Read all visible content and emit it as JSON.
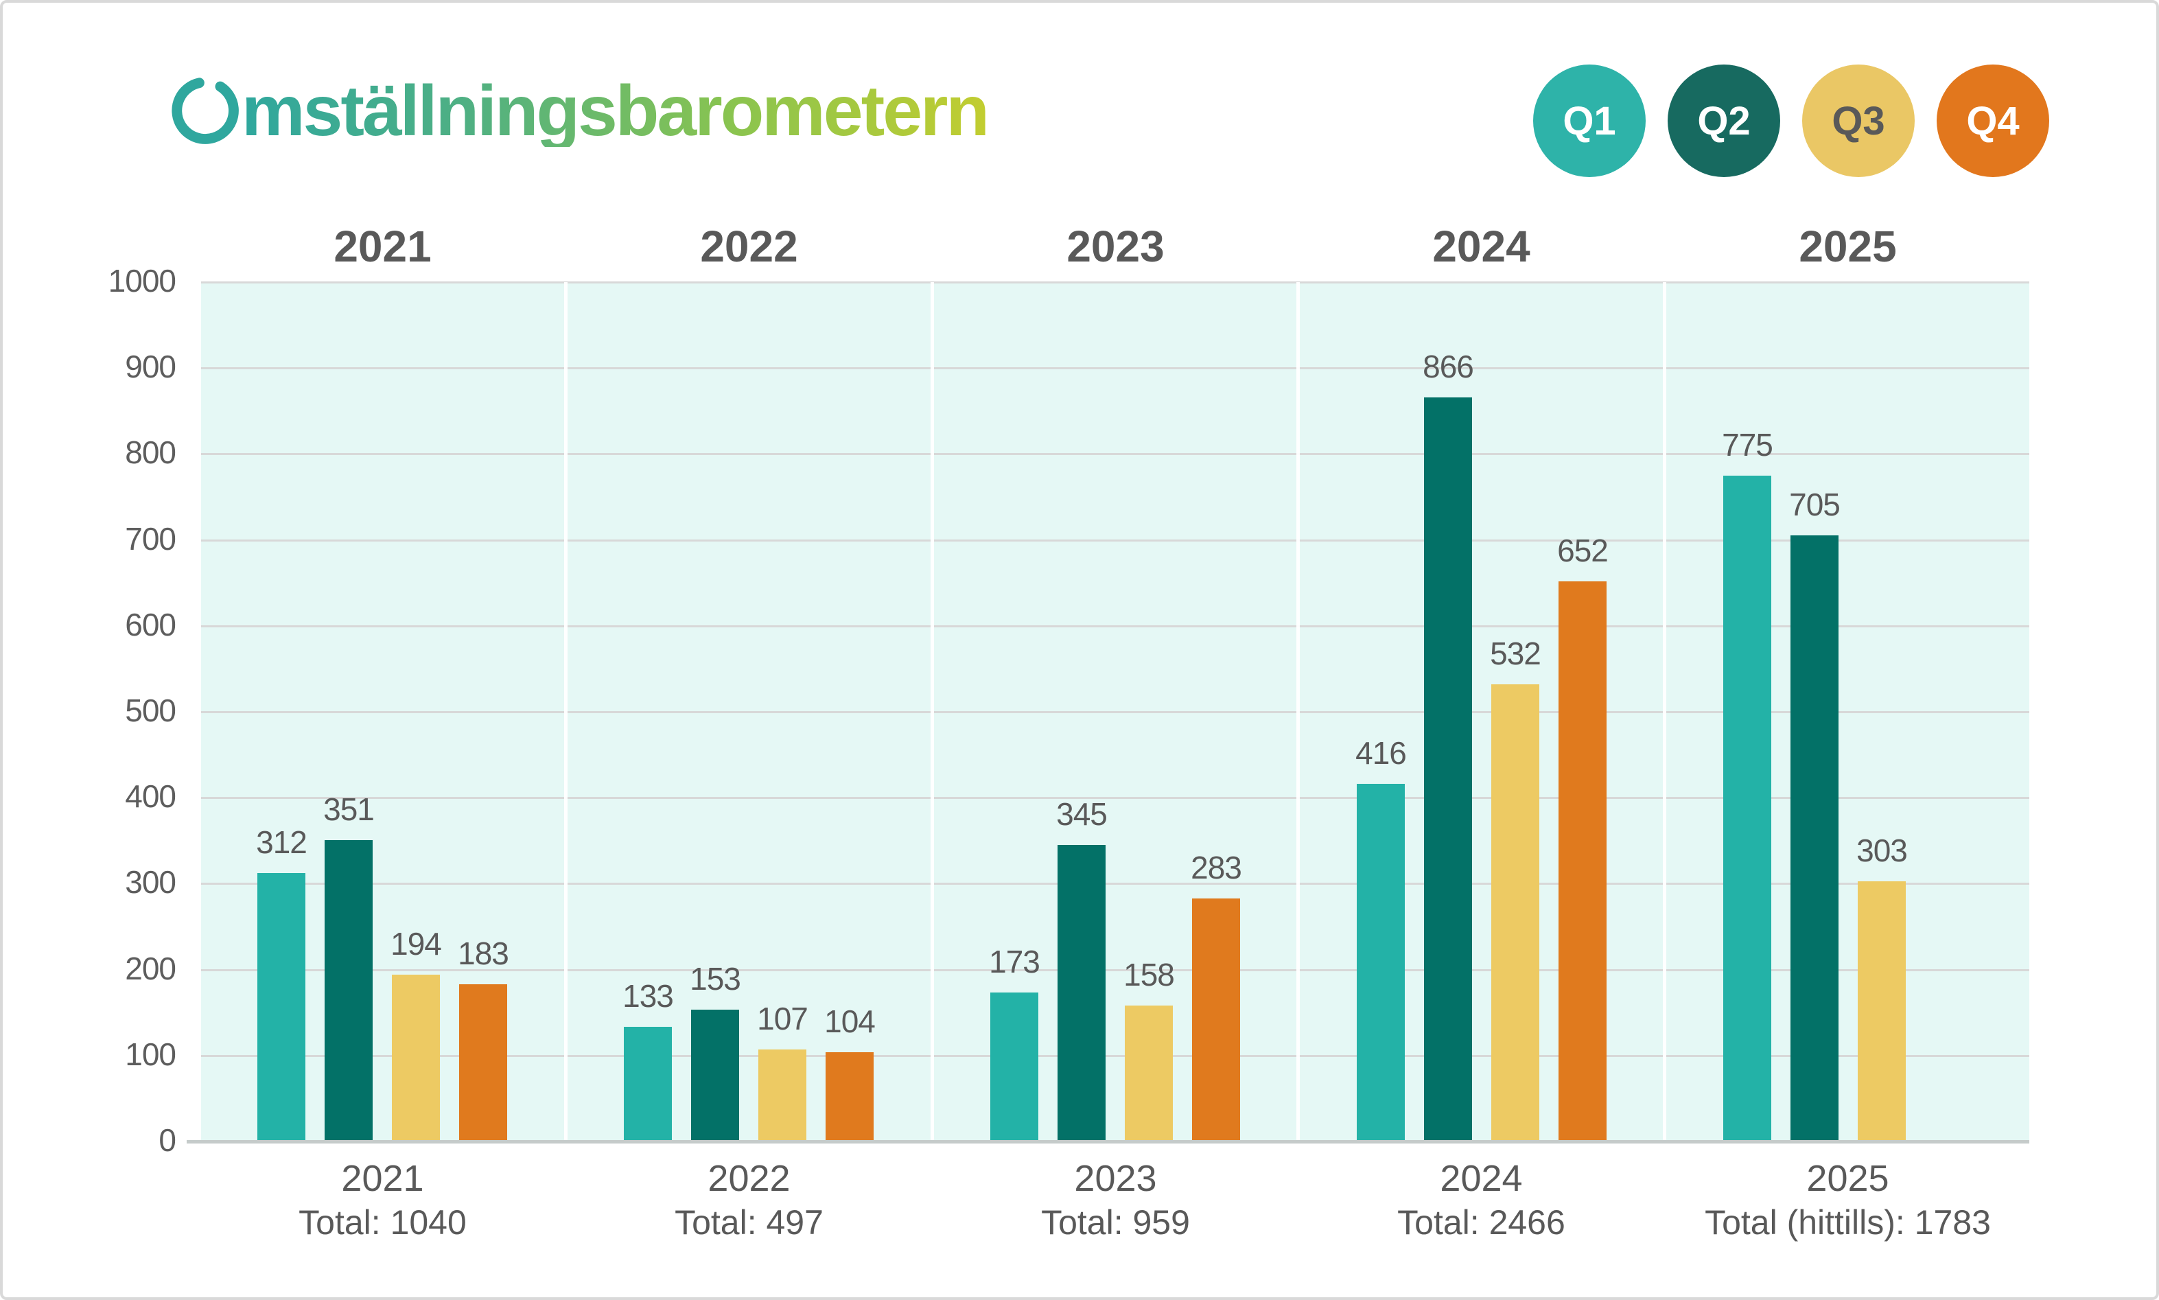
{
  "title": "Omställningsbarometern",
  "title_rest": "mställningsbarometern",
  "colors": {
    "title_gradient_start": "#2fa79e",
    "title_gradient_end": "#c2cd30",
    "plot_background": "#e5f8f5",
    "gridline": "#d8d8d8",
    "axis_line": "#c5cbca",
    "text_gray": "#595959",
    "q1": "#23b2a7",
    "q2": "#037167",
    "q3": "#edca63",
    "q4": "#e07a1e"
  },
  "legend": [
    {
      "label": "Q1",
      "color": "#2eb3a9",
      "text_color": "#ffffff"
    },
    {
      "label": "Q2",
      "color": "#176a60",
      "text_color": "#ffffff"
    },
    {
      "label": "Q3",
      "color": "#eac765",
      "text_color": "#595959"
    },
    {
      "label": "Q4",
      "color": "#e2771d",
      "text_color": "#ffffff"
    }
  ],
  "y_axis": {
    "min": 0,
    "max": 1000,
    "step": 100,
    "ticks": [
      "1000",
      "900",
      "800",
      "700",
      "600",
      "500",
      "400",
      "300",
      "200",
      "100",
      "0"
    ]
  },
  "chart_data": {
    "type": "bar",
    "title": "Omställningsbarometern",
    "categories": [
      "2021",
      "2022",
      "2023",
      "2024",
      "2025"
    ],
    "series": [
      {
        "name": "Q1",
        "color": "#23b2a7",
        "values": [
          312,
          133,
          173,
          416,
          775
        ]
      },
      {
        "name": "Q2",
        "color": "#037167",
        "values": [
          351,
          153,
          345,
          866,
          705
        ]
      },
      {
        "name": "Q3",
        "color": "#edca63",
        "values": [
          194,
          107,
          158,
          532,
          303
        ]
      },
      {
        "name": "Q4",
        "color": "#e07a1e",
        "values": [
          183,
          104,
          283,
          652,
          null
        ]
      }
    ],
    "totals": [
      "Total: 1040",
      "Total: 497",
      "Total: 959",
      "Total: 2466",
      "Total (hittills): 1783"
    ],
    "xlabel": "",
    "ylabel": "",
    "ylim": [
      0,
      1000
    ],
    "grid": true,
    "legend_position": "top-right"
  }
}
